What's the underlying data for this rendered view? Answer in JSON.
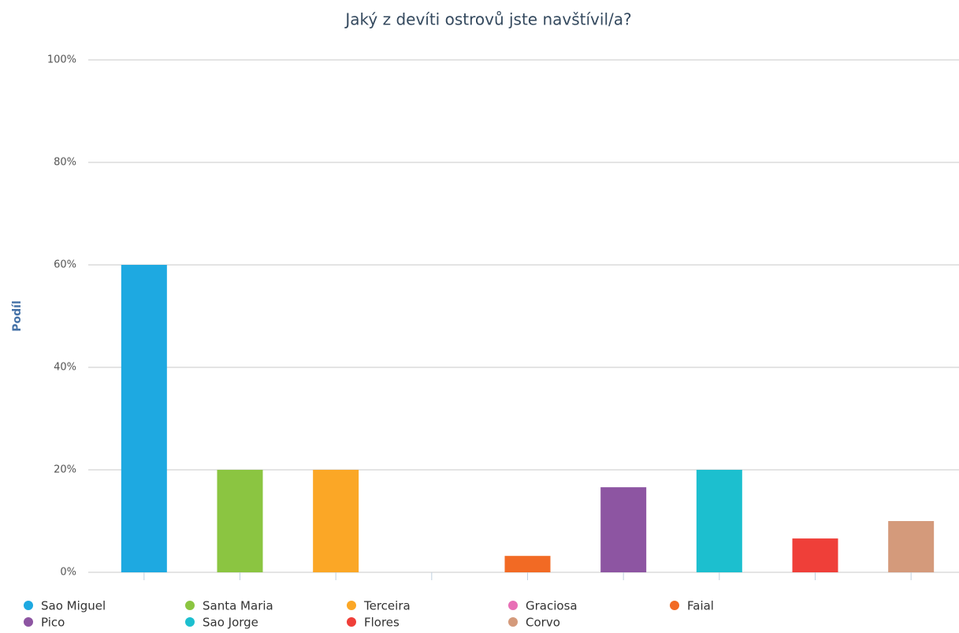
{
  "chart_data": {
    "type": "bar",
    "title": "Jaký z devíti ostrovů jste navštívil/a?",
    "y_label": "Podíl",
    "categories": [
      "Sao Miguel",
      "Santa Maria",
      "Terceira",
      "Graciosa",
      "Faial",
      "Pico",
      "Sao Jorge",
      "Flores",
      "Corvo"
    ],
    "values": [
      60,
      20,
      20,
      0,
      3.2,
      16.6,
      20,
      6.6,
      10
    ],
    "colors": [
      "#1ea9e1",
      "#8bc541",
      "#fba726",
      "#e86fb6",
      "#f26a24",
      "#8d55a2",
      "#1cbfcf",
      "#ef3f39",
      "#d49a7b"
    ],
    "ylim": [
      0,
      100
    ],
    "yticks": [
      {
        "value": 0,
        "label": "0%"
      },
      {
        "value": 20,
        "label": "20%"
      },
      {
        "value": 40,
        "label": "40%"
      },
      {
        "value": 60,
        "label": "60%"
      },
      {
        "value": 80,
        "label": "80%"
      },
      {
        "value": 100,
        "label": "100%"
      }
    ],
    "grid": true,
    "legend": "bottom"
  }
}
